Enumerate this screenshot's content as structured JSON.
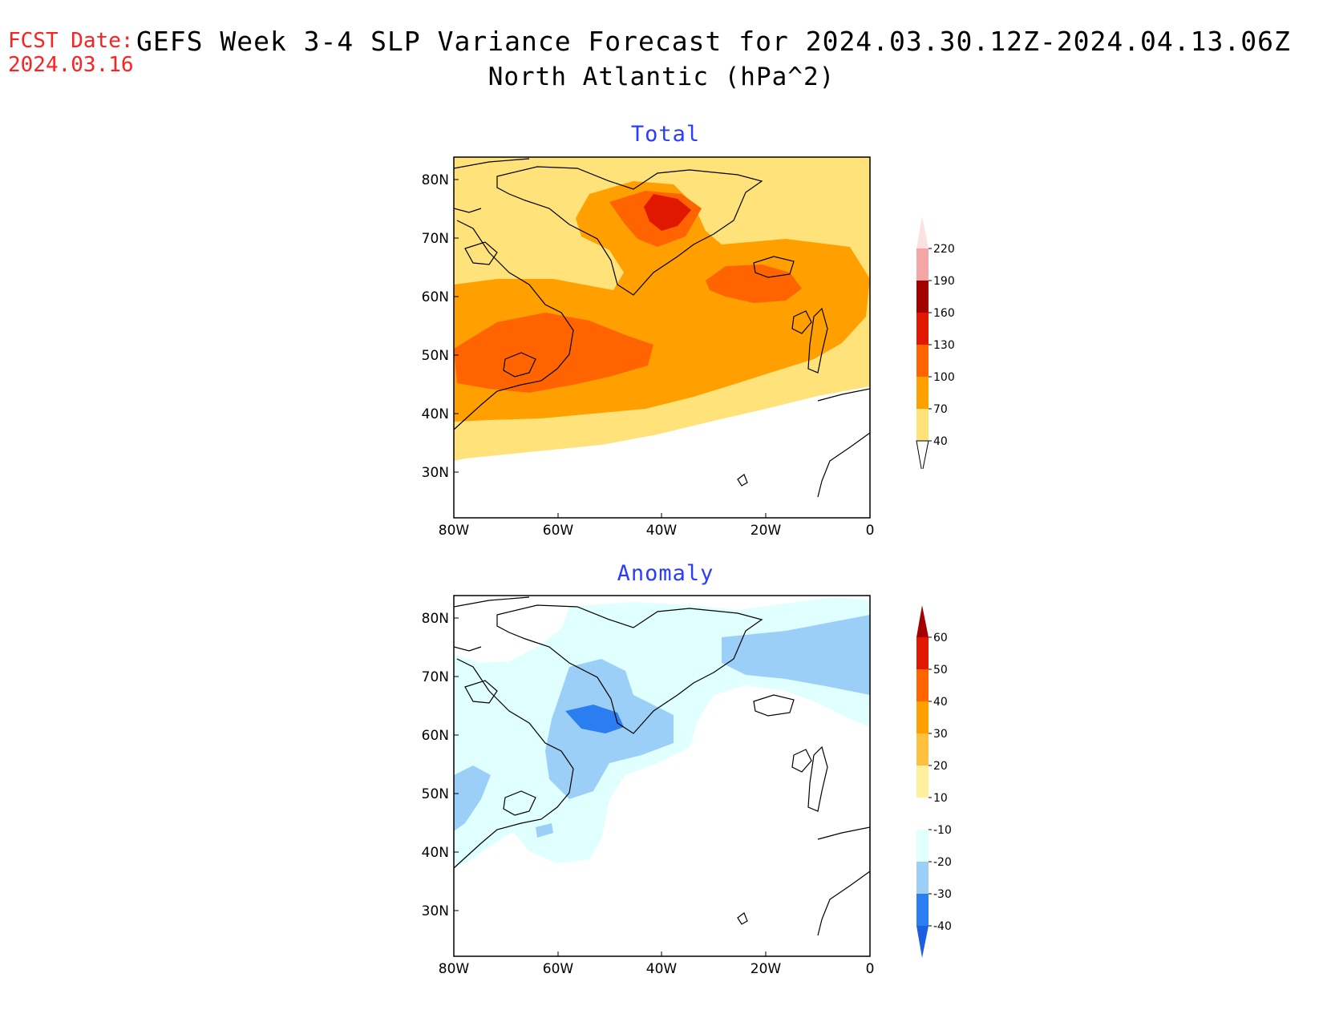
{
  "header": {
    "fcst_label": "FCST Date:",
    "fcst_date": "2024.03.16",
    "title": "GEFS Week 3-4 SLP Variance Forecast for 2024.03.30.12Z-2024.04.13.06Z",
    "subtitle": "North Atlantic (hPa^2)"
  },
  "axes": {
    "lat_labels": [
      "80N",
      "70N",
      "60N",
      "50N",
      "40N",
      "30N"
    ],
    "lon_labels": [
      "80W",
      "60W",
      "40W",
      "20W",
      "0"
    ]
  },
  "panels": {
    "total": {
      "title": "Total",
      "colorbar": {
        "labels": [
          "220",
          "190",
          "160",
          "130",
          "100",
          "70",
          "40"
        ],
        "colors": [
          "#fde0e0",
          "#f4a6a6",
          "#a50000",
          "#e01800",
          "#ff6400",
          "#ffa000",
          "#ffe27a"
        ]
      }
    },
    "anomaly": {
      "title": "Anomaly",
      "colorbar": {
        "labels": [
          "60",
          "50",
          "40",
          "30",
          "20",
          "10",
          "-10",
          "-20",
          "-30",
          "-40"
        ],
        "colors": [
          "#a50000",
          "#e01800",
          "#ff6400",
          "#ffa000",
          "#ffc040",
          "#fff0a0",
          "#ffffff",
          "#e0ffff",
          "#9ccff8",
          "#2a7ef0",
          "#1a60e0"
        ]
      }
    }
  }
}
